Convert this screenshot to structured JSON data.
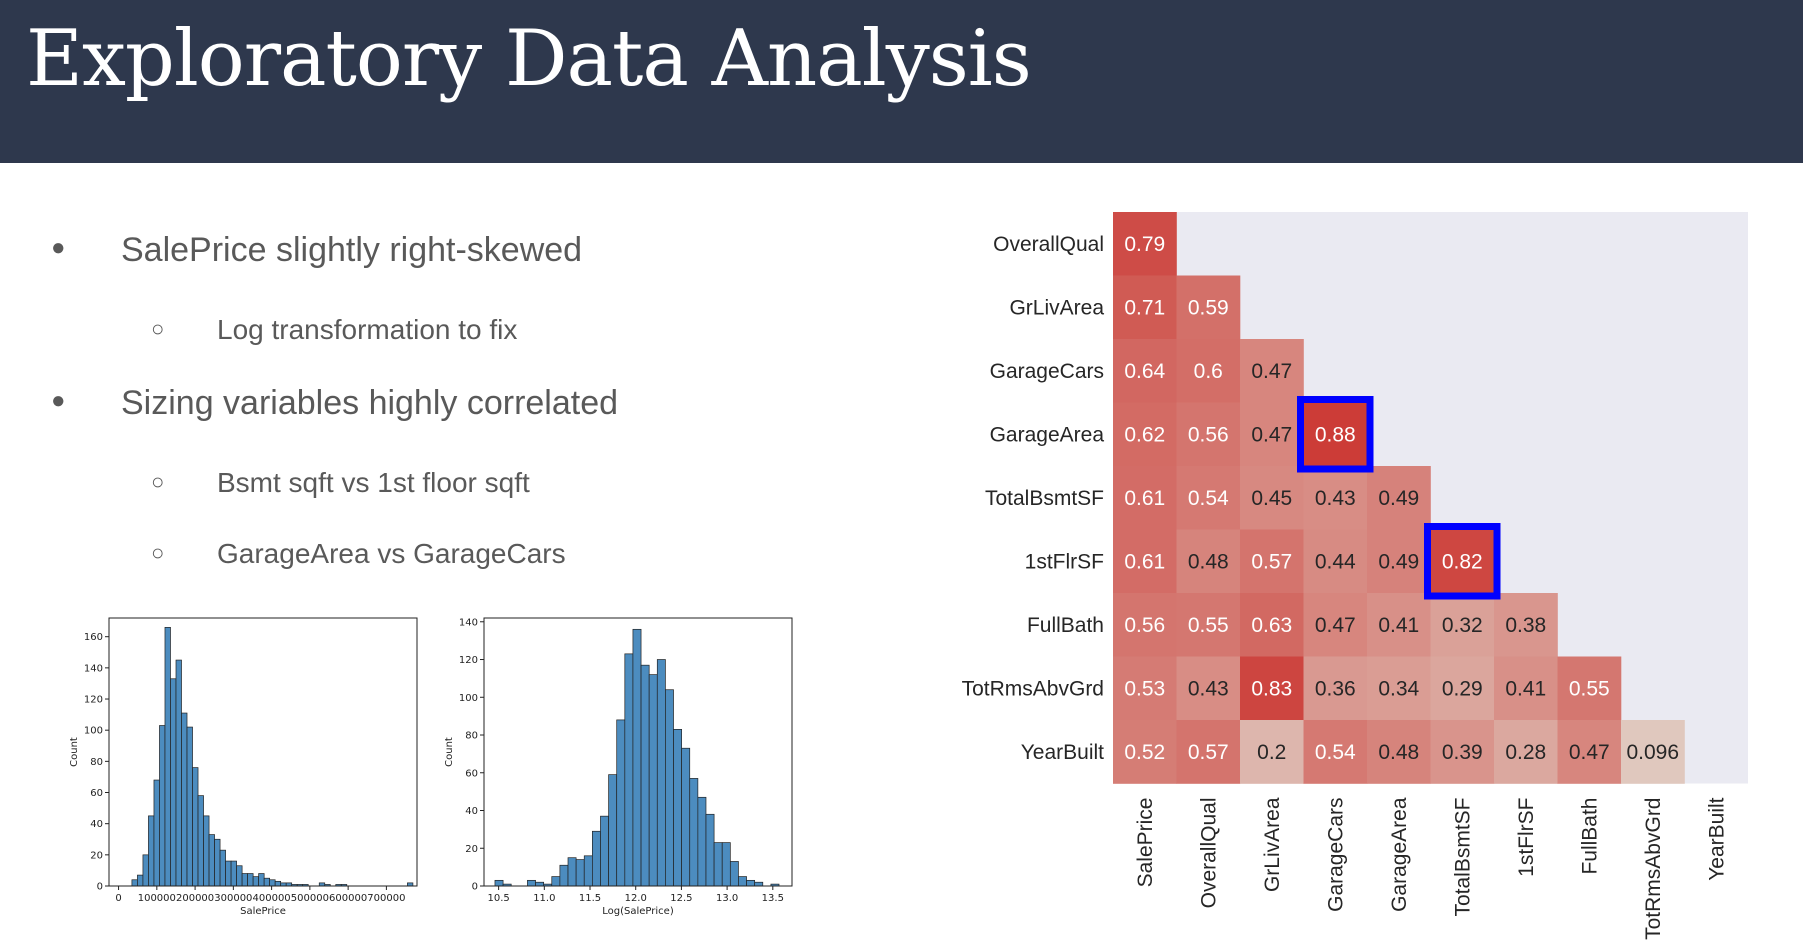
{
  "slide": {
    "title": "Exploratory Data Analysis",
    "bullets": [
      {
        "level": 1,
        "marker": "●",
        "text": "SalePrice slightly right-skewed"
      },
      {
        "level": 2,
        "marker": "○",
        "text": "Log transformation to fix"
      },
      {
        "level": 1,
        "marker": "●",
        "text": "Sizing variables highly correlated"
      },
      {
        "level": 2,
        "marker": "○",
        "text": "Bsmt sqft vs 1st floor sqft"
      },
      {
        "level": 2,
        "marker": "○",
        "text": "GarageArea vs GarageCars"
      }
    ],
    "colors": {
      "header_bg": "#2e384d",
      "hist_bar": "#4c8cbf",
      "highlight": "#0000ff",
      "heatmap_bg": "#eaeaf2"
    }
  },
  "chart_data": [
    {
      "type": "bar",
      "xlabel": "SalePrice",
      "ylabel": "Count",
      "xticks": [
        0,
        100000,
        200000,
        300000,
        400000,
        500000,
        600000,
        700000
      ],
      "yticks": [
        0,
        20,
        40,
        60,
        80,
        100,
        120,
        140,
        160
      ],
      "xlim": [
        -25000,
        780000
      ],
      "ylim": [
        0,
        172
      ],
      "bin_start": 34900,
      "bin_width": 14400,
      "values": [
        4,
        7,
        20,
        45,
        68,
        103,
        166,
        133,
        145,
        111,
        102,
        76,
        58,
        45,
        33,
        30,
        23,
        16,
        16,
        13,
        8,
        8,
        6,
        8,
        5,
        4,
        3,
        2,
        2,
        1,
        1,
        1,
        0,
        0,
        2,
        1,
        0,
        1,
        1,
        0,
        0,
        0,
        0,
        0,
        0,
        0,
        0,
        0,
        0,
        0,
        2
      ]
    },
    {
      "type": "bar",
      "xlabel": "Log(SalePrice)",
      "ylabel": "Count",
      "xticks": [
        10.5,
        11.0,
        11.5,
        12.0,
        12.5,
        13.0,
        13.5
      ],
      "yticks": [
        0,
        20,
        40,
        60,
        80,
        100,
        120,
        140
      ],
      "xlim": [
        10.34,
        13.71
      ],
      "ylim": [
        0,
        142
      ],
      "bin_start": 10.46,
      "bin_width": 0.0888,
      "values": [
        3,
        1,
        0,
        0,
        3,
        2,
        1,
        5,
        11,
        15,
        14,
        16,
        29,
        37,
        59,
        88,
        123,
        136,
        117,
        112,
        120,
        104,
        83,
        73,
        57,
        47,
        38,
        23,
        23,
        13,
        5,
        3,
        2,
        0,
        1
      ]
    },
    {
      "type": "heatmap",
      "row_labels": [
        "OverallQual",
        "GrLivArea",
        "GarageCars",
        "GarageArea",
        "TotalBsmtSF",
        "1stFlrSF",
        "FullBath",
        "TotRmsAbvGrd",
        "YearBuilt"
      ],
      "col_labels": [
        "SalePrice",
        "OverallQual",
        "GrLivArea",
        "GarageCars",
        "GarageArea",
        "TotalBsmtSF",
        "1stFlrSF",
        "FullBath",
        "TotRmsAbvGrd",
        "YearBuilt"
      ],
      "values": [
        [
          "0.79"
        ],
        [
          "0.71",
          "0.59"
        ],
        [
          "0.64",
          "0.6",
          "0.47"
        ],
        [
          "0.62",
          "0.56",
          "0.47",
          "0.88"
        ],
        [
          "0.61",
          "0.54",
          "0.45",
          "0.43",
          "0.49"
        ],
        [
          "0.61",
          "0.48",
          "0.57",
          "0.44",
          "0.49",
          "0.82"
        ],
        [
          "0.56",
          "0.55",
          "0.63",
          "0.47",
          "0.41",
          "0.32",
          "0.38"
        ],
        [
          "0.53",
          "0.43",
          "0.83",
          "0.36",
          "0.34",
          "0.29",
          "0.41",
          "0.55"
        ],
        [
          "0.52",
          "0.57",
          "0.2",
          "0.54",
          "0.48",
          "0.39",
          "0.28",
          "0.47",
          "0.096"
        ]
      ],
      "highlighted_cells": [
        {
          "row": "GarageArea",
          "col": "GarageCars"
        },
        {
          "row": "1stFlrSF",
          "col": "TotalBsmtSF"
        }
      ]
    }
  ]
}
